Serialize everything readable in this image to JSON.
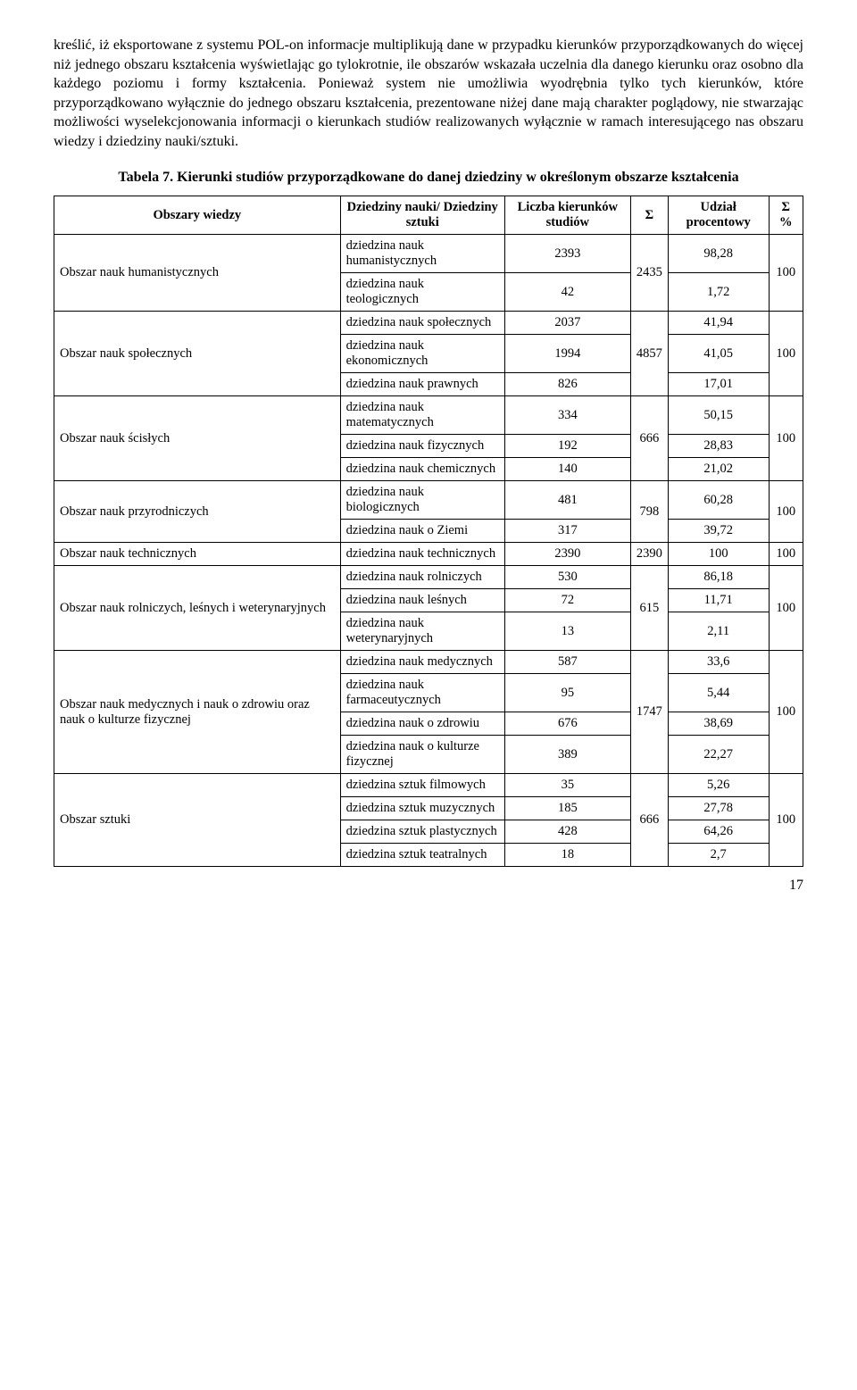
{
  "paragraph": "kreślić, iż eksportowane z systemu POL-on informacje multiplikują dane w przypadku kierunków przyporządkowanych do więcej niż jednego obszaru kształcenia wyświetlając go tylokrotnie, ile obszarów wskazała uczelnia dla danego kierunku oraz osobno dla każdego poziomu i formy kształcenia. Ponieważ system nie umożliwia wyodrębnia tylko tych kierunków, które przyporządkowano wyłącznie do jednego obszaru kształcenia, prezentowane niżej dane mają charakter poglądowy, nie stwarzając możliwości wyselekcjonowania informacji o kierunkach studiów realizowanych wyłącznie w ramach interesującego nas obszaru wiedzy i dziedziny nauki/sztuki.",
  "tableTitle": "Tabela 7. Kierunki studiów przyporządkowane do danej dziedziny w określonym obszarze kształcenia",
  "headers": {
    "areas": "Obszary wiedzy",
    "disciplines": "Dziedziny nauki/ Dziedziny sztuki",
    "count": "Liczba kierunków studiów",
    "sigma": "Σ",
    "percent": "Udział procentowy",
    "sigmaPercent": "Σ %"
  },
  "rows": [
    {
      "area": "Obszar nauk humanistycznych",
      "areaRowspan": 2,
      "discipline": "dziedzina nauk humanistycznych",
      "count": "2393",
      "sigma": "2435",
      "sigmaRowspan": 2,
      "percent": "98,28",
      "sigmaPercent": "100",
      "sigmaPercentRowspan": 2
    },
    {
      "discipline": "dziedzina nauk teologicznych",
      "count": "42",
      "percent": "1,72"
    },
    {
      "area": "Obszar nauk społecznych",
      "areaRowspan": 3,
      "discipline": "dziedzina nauk społecznych",
      "count": "2037",
      "sigma": "4857",
      "sigmaRowspan": 3,
      "percent": "41,94",
      "sigmaPercent": "100",
      "sigmaPercentRowspan": 3
    },
    {
      "discipline": "dziedzina nauk ekonomicznych",
      "count": "1994",
      "percent": "41,05"
    },
    {
      "discipline": "dziedzina nauk prawnych",
      "count": "826",
      "percent": "17,01"
    },
    {
      "area": "Obszar nauk ścisłych",
      "areaRowspan": 3,
      "discipline": "dziedzina nauk matematycznych",
      "count": "334",
      "sigma": "666",
      "sigmaRowspan": 3,
      "percent": "50,15",
      "sigmaPercent": "100",
      "sigmaPercentRowspan": 3
    },
    {
      "discipline": "dziedzina nauk fizycznych",
      "count": "192",
      "percent": "28,83"
    },
    {
      "discipline": "dziedzina nauk chemicznych",
      "count": "140",
      "percent": "21,02"
    },
    {
      "area": "Obszar nauk przyrodniczych",
      "areaRowspan": 2,
      "discipline": "dziedzina nauk biologicznych",
      "count": "481",
      "sigma": "798",
      "sigmaRowspan": 2,
      "percent": "60,28",
      "sigmaPercent": "100",
      "sigmaPercentRowspan": 2
    },
    {
      "discipline": "dziedzina nauk o Ziemi",
      "count": "317",
      "percent": "39,72"
    },
    {
      "area": "Obszar nauk technicznych",
      "areaRowspan": 1,
      "discipline": "dziedzina nauk technicznych",
      "count": "2390",
      "sigma": "2390",
      "sigmaRowspan": 1,
      "percent": "100",
      "sigmaPercent": "100",
      "sigmaPercentRowspan": 1
    },
    {
      "area": "Obszar nauk rolniczych, leśnych i weterynaryjnych",
      "areaRowspan": 3,
      "discipline": "dziedzina nauk rolniczych",
      "count": "530",
      "sigma": "615",
      "sigmaRowspan": 3,
      "percent": "86,18",
      "sigmaPercent": "100",
      "sigmaPercentRowspan": 3
    },
    {
      "discipline": "dziedzina nauk leśnych",
      "count": "72",
      "percent": "11,71"
    },
    {
      "discipline": "dziedzina nauk weterynaryjnych",
      "count": "13",
      "percent": "2,11"
    },
    {
      "area": "Obszar nauk medycznych i nauk o zdrowiu oraz nauk o kulturze fizycznej",
      "areaRowspan": 4,
      "discipline": "dziedzina nauk medycznych",
      "count": "587",
      "sigma": "1747",
      "sigmaRowspan": 4,
      "percent": "33,6",
      "sigmaPercent": "100",
      "sigmaPercentRowspan": 4
    },
    {
      "discipline": "dziedzina nauk farmaceutycznych",
      "count": "95",
      "percent": "5,44"
    },
    {
      "discipline": "dziedzina nauk o zdrowiu",
      "count": "676",
      "percent": "38,69"
    },
    {
      "discipline": "dziedzina nauk o kulturze fizycznej",
      "count": "389",
      "percent": "22,27"
    },
    {
      "area": "Obszar sztuki",
      "areaRowspan": 4,
      "discipline": "dziedzina sztuk filmowych",
      "count": "35",
      "sigma": "666",
      "sigmaRowspan": 4,
      "percent": "5,26",
      "sigmaPercent": "100",
      "sigmaPercentRowspan": 4
    },
    {
      "discipline": "dziedzina sztuk muzycznych",
      "count": "185",
      "percent": "27,78"
    },
    {
      "discipline": "dziedzina sztuk plastycznych",
      "count": "428",
      "percent": "64,26"
    },
    {
      "discipline": "dziedzina sztuk teatralnych",
      "count": "18",
      "percent": "2,7"
    }
  ],
  "pageNumber": "17"
}
